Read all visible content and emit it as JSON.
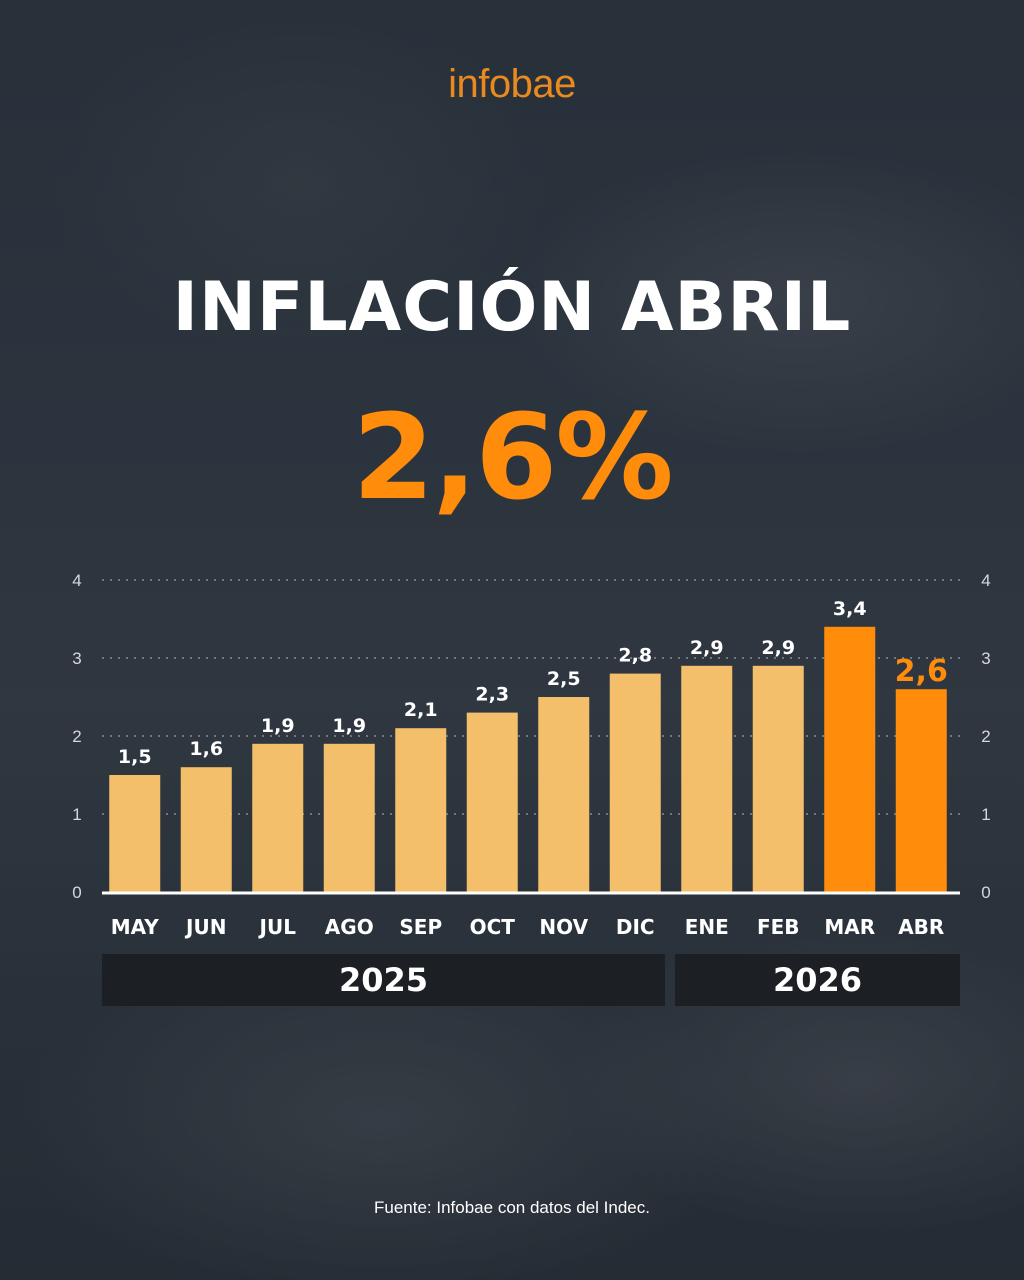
{
  "brand": {
    "logo_text": "infobae"
  },
  "headline": "INFLACIÓN ABRIL",
  "highlight_value": "2,6%",
  "colors": {
    "bar_default": "#f3bf6b",
    "bar_highlight": "#ff8c0a",
    "accent_text": "#ff8c0a"
  },
  "chart_data": {
    "type": "bar",
    "categories": [
      "MAY",
      "JUN",
      "JUL",
      "AGO",
      "SEP",
      "OCT",
      "NOV",
      "DIC",
      "ENE",
      "FEB",
      "MAR",
      "ABR"
    ],
    "values": [
      1.5,
      1.6,
      1.9,
      1.9,
      2.1,
      2.3,
      2.5,
      2.8,
      2.9,
      2.9,
      3.4,
      2.6
    ],
    "data_labels": [
      "1,5",
      "1,6",
      "1,9",
      "1,9",
      "2,1",
      "2,3",
      "2,5",
      "2,8",
      "2,9",
      "2,9",
      "3,4",
      "2,6"
    ],
    "highlighted": [
      false,
      false,
      false,
      false,
      false,
      false,
      false,
      false,
      false,
      false,
      true,
      true
    ],
    "ylim": [
      0,
      4
    ],
    "yticks": [
      0,
      1,
      2,
      3,
      4
    ],
    "ytick_labels": [
      "0",
      "1",
      "2",
      "3",
      "4"
    ],
    "grid": "dotted horizontal",
    "year_groups": [
      {
        "label": "2025"
      },
      {
        "label": "2026"
      }
    ]
  },
  "source": "Fuente: Infobae con datos del Indec."
}
